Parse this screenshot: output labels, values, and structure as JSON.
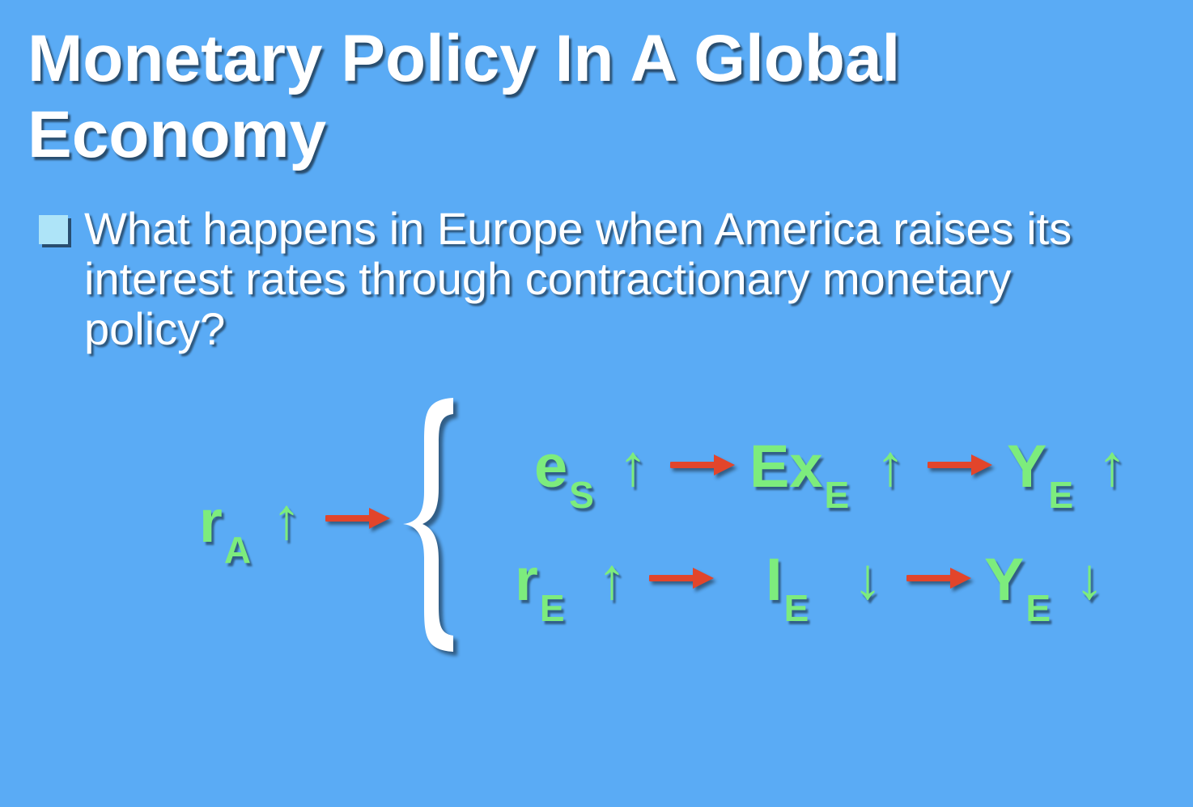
{
  "slide": {
    "title": "Monetary Policy In A Global Economy",
    "bullet": "What happens in Europe when America raises its interest rates through contractionary monetary policy?"
  },
  "diagram": {
    "source": {
      "base": "r",
      "sub": "A",
      "direction": "↑"
    },
    "top_row": [
      {
        "base": "e",
        "sub": "S",
        "direction": "↑"
      },
      {
        "base": "Ex",
        "sub": "E",
        "direction": "↑"
      },
      {
        "base": "Y",
        "sub": "E",
        "direction": "↑"
      }
    ],
    "bottom_row": [
      {
        "base": "r",
        "sub": "E",
        "direction": "↑"
      },
      {
        "base": "I",
        "sub": "E",
        "direction": "↓"
      },
      {
        "base": "Y",
        "sub": "E",
        "direction": "↓"
      }
    ]
  },
  "colors": {
    "background": "#5aabf5",
    "term": "#7dec7d",
    "causal_arrow": "#e2452b",
    "bullet_square": "#aee4f8",
    "text": "#ffffff"
  }
}
